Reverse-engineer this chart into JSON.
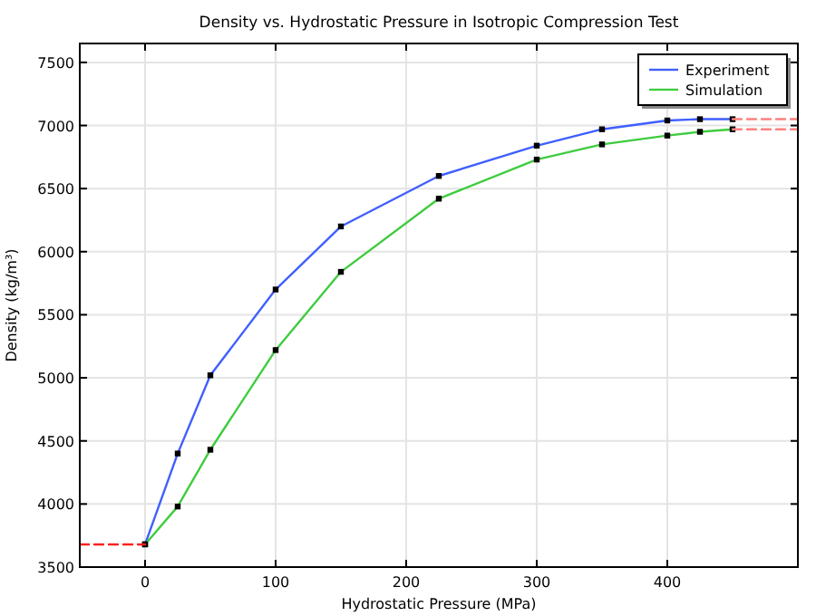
{
  "chart_data": {
    "type": "line",
    "title": "Density vs. Hydrostatic Pressure in Isotropic Compression Test",
    "xlabel": "Hydrostatic Pressure (MPa)",
    "ylabel": "Density (kg/m³)",
    "x": [
      0,
      25,
      50,
      100,
      150,
      225,
      300,
      350,
      400,
      425,
      450
    ],
    "series": [
      {
        "name": "Experiment",
        "color": "#3f5fff",
        "values": [
          3680,
          4400,
          5020,
          5700,
          6200,
          6600,
          6840,
          6970,
          7040,
          7050,
          7050
        ],
        "marker": "square"
      },
      {
        "name": "Simulation",
        "color": "#3fcc3f",
        "values": [
          3680,
          3980,
          4430,
          5220,
          5840,
          6420,
          6730,
          6850,
          6920,
          6950,
          6970
        ],
        "marker": "square"
      },
      {
        "color": "#ff2020",
        "x": [
          -50,
          0
        ],
        "values": [
          3680,
          3680
        ],
        "line_style": "dashed",
        "marker": "none"
      },
      {
        "color": "#ff8080",
        "x": [
          450,
          500
        ],
        "values": [
          7050,
          7050
        ],
        "line_style": "dashed",
        "marker": "none"
      },
      {
        "color": "#ff8080",
        "x": [
          450,
          500
        ],
        "values": [
          6970,
          6970
        ],
        "line_style": "dashed",
        "marker": "none"
      }
    ],
    "xlim": [
      -50,
      500
    ],
    "ylim": [
      3500,
      7650
    ],
    "xticks": [
      0,
      100,
      200,
      300,
      400
    ],
    "yticks": [
      3500,
      4000,
      4500,
      5000,
      5500,
      6000,
      6500,
      7000,
      7500
    ],
    "grid": true,
    "legend": "top right"
  }
}
